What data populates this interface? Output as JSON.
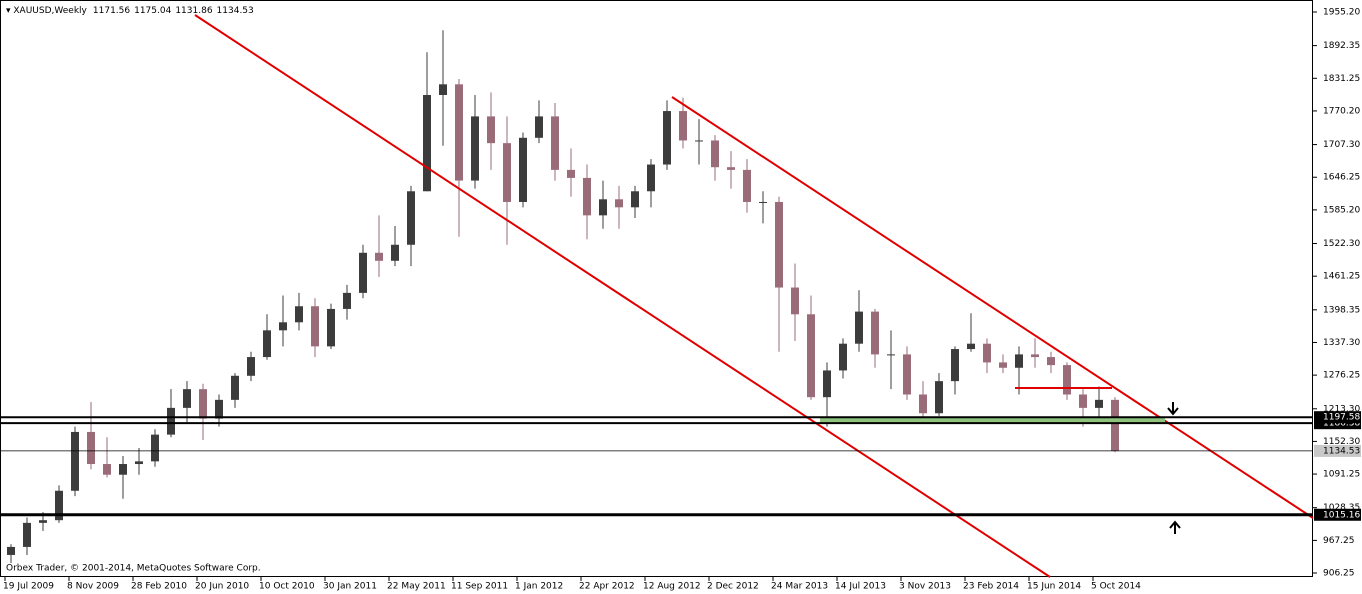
{
  "chart_data": {
    "type": "candlestick",
    "title": "XAUUSD,Weekly",
    "header_values": [
      1171.56,
      1175.04,
      1131.86,
      1134.53
    ],
    "credit": "Orbex Trader, © 2001-2014, MetaQuotes Software Corp.",
    "categories": [
      "19 Jul 2009",
      null,
      null,
      null,
      "8 Nov 2009",
      null,
      null,
      null,
      "28 Feb 2010",
      null,
      null,
      null,
      "20 Jun 2010",
      null,
      null,
      null,
      "10 Oct 2010",
      null,
      null,
      null,
      "30 Jan 2011",
      null,
      null,
      null,
      "22 May 2011",
      null,
      null,
      null,
      "11 Sep 2011",
      null,
      null,
      null,
      "1 Jan 2012",
      null,
      null,
      null,
      "22 Apr 2012",
      null,
      null,
      null,
      "12 Aug 2012",
      null,
      null,
      null,
      "2 Dec 2012",
      null,
      null,
      null,
      "24 Mar 2013",
      null,
      null,
      null,
      "14 Jul 2013",
      null,
      null,
      null,
      "3 Nov 2013",
      null,
      null,
      null,
      "23 Feb 2014",
      null,
      null,
      null,
      "15 Jun 2014",
      null,
      null,
      null,
      "5 Oct 2014",
      null
    ],
    "open": [
      940,
      955,
      1000,
      1005,
      1060,
      1170,
      1110,
      1090,
      1110,
      1115,
      1165,
      1215,
      1250,
      1195,
      1230,
      1275,
      1310,
      1360,
      1375,
      1405,
      1330,
      1400,
      1430,
      1505,
      1490,
      1520,
      1620,
      1800,
      1820,
      1640,
      1760,
      1710,
      1600,
      1720,
      1760,
      1660,
      1645,
      1575,
      1605,
      1590,
      1620,
      1670,
      1770,
      1715,
      1715,
      1665,
      1660,
      1600,
      1600,
      1440,
      1390,
      1235,
      1285,
      1335,
      1395,
      1315,
      1315,
      1240,
      1205,
      1265,
      1325,
      1335,
      1300,
      1290,
      1315,
      1310,
      1295,
      1240,
      1215,
      1230
    ],
    "high": [
      960,
      1010,
      1020,
      1070,
      1180,
      1226,
      1160,
      1125,
      1140,
      1175,
      1250,
      1265,
      1260,
      1240,
      1280,
      1320,
      1390,
      1425,
      1430,
      1420,
      1410,
      1445,
      1520,
      1575,
      1555,
      1630,
      1880,
      1921,
      1830,
      1800,
      1805,
      1760,
      1730,
      1790,
      1785,
      1700,
      1670,
      1640,
      1630,
      1630,
      1680,
      1790,
      1795,
      1755,
      1725,
      1695,
      1680,
      1620,
      1610,
      1485,
      1425,
      1300,
      1345,
      1435,
      1400,
      1360,
      1330,
      1265,
      1280,
      1330,
      1392,
      1345,
      1315,
      1330,
      1345,
      1320,
      1300,
      1250,
      1255,
      1235
    ],
    "low": [
      925,
      940,
      985,
      1000,
      1050,
      1100,
      1085,
      1045,
      1090,
      1105,
      1160,
      1185,
      1155,
      1180,
      1215,
      1265,
      1305,
      1330,
      1360,
      1310,
      1325,
      1380,
      1420,
      1460,
      1480,
      1480,
      1620,
      1705,
      1535,
      1625,
      1660,
      1520,
      1590,
      1710,
      1640,
      1610,
      1530,
      1550,
      1550,
      1570,
      1590,
      1660,
      1700,
      1670,
      1640,
      1625,
      1580,
      1560,
      1320,
      1340,
      1230,
      1180,
      1270,
      1320,
      1290,
      1250,
      1230,
      1185,
      1200,
      1240,
      1320,
      1280,
      1280,
      1240,
      1290,
      1280,
      1230,
      1180,
      1195,
      1132
    ],
    "close": [
      955,
      1000,
      1005,
      1060,
      1170,
      1110,
      1090,
      1110,
      1115,
      1165,
      1215,
      1250,
      1195,
      1230,
      1275,
      1310,
      1360,
      1375,
      1405,
      1330,
      1400,
      1430,
      1505,
      1490,
      1520,
      1620,
      1800,
      1820,
      1640,
      1760,
      1710,
      1600,
      1720,
      1760,
      1660,
      1645,
      1575,
      1605,
      1590,
      1620,
      1670,
      1770,
      1715,
      1715,
      1665,
      1660,
      1600,
      1600,
      1440,
      1390,
      1235,
      1285,
      1335,
      1395,
      1315,
      1315,
      1240,
      1205,
      1265,
      1325,
      1335,
      1300,
      1290,
      1315,
      1310,
      1295,
      1240,
      1215,
      1230,
      1135
    ],
    "up_color": "#3c3c3c",
    "down_color": "#9a6b78",
    "ylim": [
      906.25,
      1955.2
    ],
    "yticks": [
      {
        "value": 1955.2,
        "label": "1955.20"
      },
      1892.35,
      1831.25,
      {
        "value": 1770.2,
        "label": "1770.20"
      },
      {
        "value": 1707.3,
        "label": "1707.30"
      },
      1646.25,
      {
        "value": 1585.2,
        "label": "1585.20"
      },
      {
        "value": 1522.3,
        "label": "1522.30"
      },
      1461.25,
      1398.35,
      {
        "value": 1337.3,
        "label": "1337.30"
      },
      1276.25,
      {
        "value": 1213.3,
        "label": "1213.30"
      },
      {
        "value": 1152.3,
        "label": "1152.30"
      },
      1091.25,
      1028.35,
      967.25,
      906.25
    ],
    "levels": [
      1197.58,
      1186.38,
      1015.16
    ],
    "last_price": 1134.53,
    "grid": false
  }
}
